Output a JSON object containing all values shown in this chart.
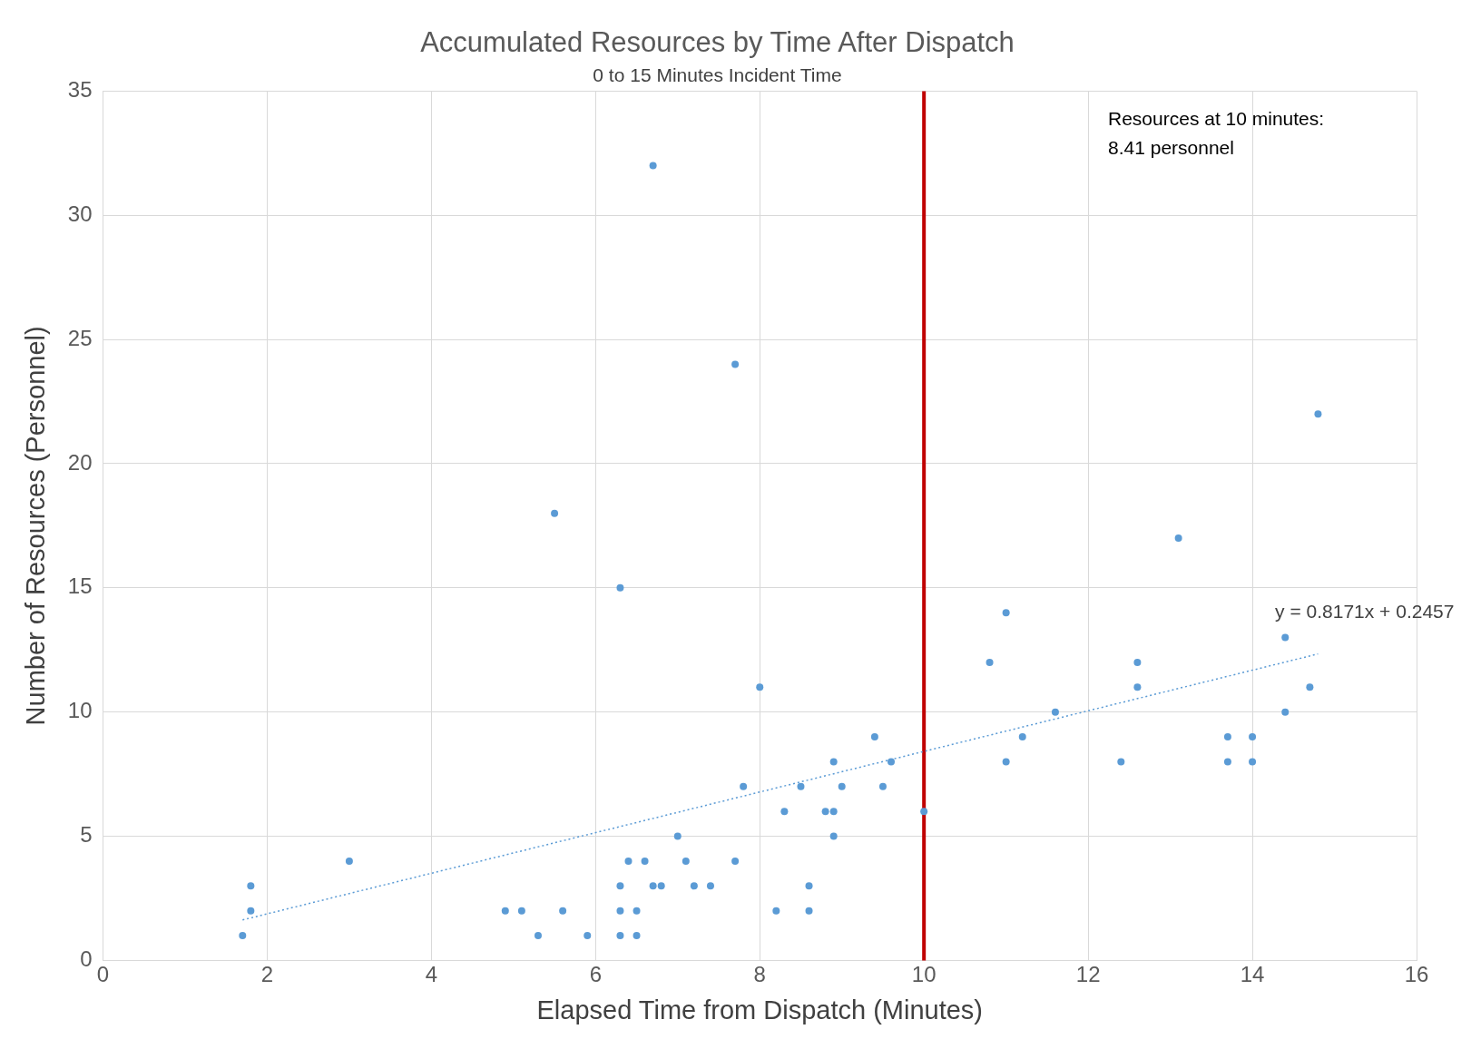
{
  "chart_data": {
    "type": "scatter",
    "title": "Accumulated Resources by Time After Dispatch",
    "subtitle": "0 to 15 Minutes Incident Time",
    "xlabel": "Elapsed Time from Dispatch (Minutes)",
    "ylabel": "Number of Resources (Personnel)",
    "xlim": [
      0,
      16
    ],
    "xticks": [
      0,
      2,
      4,
      6,
      8,
      10,
      12,
      14,
      16
    ],
    "ylim": [
      0,
      35
    ],
    "yticks": [
      0,
      5,
      10,
      15,
      20,
      25,
      30,
      35
    ],
    "grid": true,
    "legend": false,
    "marker": "circle",
    "series": [
      {
        "color": "#5b9bd5",
        "x": [
          1.7,
          1.8,
          1.8,
          3.0,
          4.9,
          5.1,
          5.3,
          5.5,
          5.6,
          5.9,
          6.3,
          6.3,
          6.3,
          6.3,
          6.4,
          6.5,
          6.5,
          6.6,
          6.7,
          6.7,
          6.8,
          7.0,
          7.1,
          7.2,
          7.4,
          7.7,
          7.7,
          7.8,
          8.0,
          8.2,
          8.3,
          8.5,
          8.6,
          8.6,
          8.8,
          8.9,
          8.9,
          8.9,
          9.0,
          9.4,
          9.5,
          9.6,
          10.0,
          10.8,
          11.0,
          11.0,
          11.2,
          11.6,
          12.4,
          12.6,
          12.6,
          13.1,
          13.7,
          13.7,
          14.0,
          14.0,
          14.4,
          14.4,
          14.7,
          14.8
        ],
        "values": [
          1,
          3,
          2,
          4,
          2,
          2,
          1,
          18,
          2,
          1,
          15,
          3,
          2,
          1,
          4,
          2,
          1,
          4,
          32,
          3,
          3,
          5,
          4,
          3,
          3,
          24,
          4,
          7,
          11,
          2,
          6,
          7,
          3,
          2,
          6,
          8,
          6,
          5,
          7,
          9,
          7,
          8,
          6,
          12,
          14,
          8,
          9,
          10,
          8,
          12,
          11,
          17,
          9,
          8,
          9,
          8,
          13,
          10,
          11,
          22
        ]
      },
      {
        "type": "line",
        "color": "#5b9bd5",
        "line_style": "dotted",
        "marker": "none",
        "x": [
          1.7,
          14.8
        ],
        "values": [
          1.63,
          12.34
        ]
      }
    ],
    "ref_lines": [
      {
        "axis": "x",
        "value": 10,
        "color": "#c00000"
      }
    ],
    "annotations": [
      "Resources at 10 minutes:\n8.41 personnel",
      "y = 0.8171x + 0.2457"
    ]
  }
}
